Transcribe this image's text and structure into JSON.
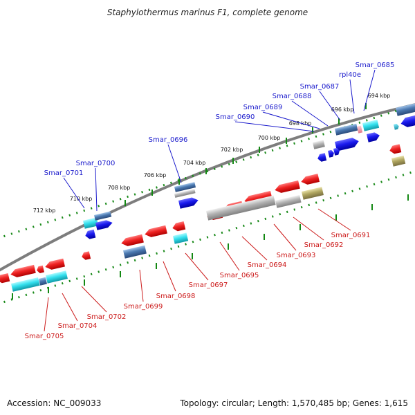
{
  "title": "Staphylothermus marinus F1, complete genome",
  "footer": {
    "accession": "Accession: NC_009033",
    "summary": "Topology: circular; Length: 1,570,485 bp; Genes: 1,615"
  },
  "colors": {
    "backbone": "#7d7d7d",
    "tick_dots": "#1a8a1a",
    "forward_label": "#1a1acc",
    "reverse_label": "#cc1a1a",
    "red_gene": "#ee2222",
    "blue_gene": "#1a1aee",
    "cyan_gene": "#33e0ee",
    "steel_gene": "#4a78b0",
    "gray_gene": "#b4b4b4",
    "olive_gene": "#b0a660",
    "pink_gene": "#f09aa8",
    "teal_gene": "#30a8c0"
  },
  "kbp_ticks": [
    "694 kbp",
    "696 kbp",
    "698 kbp",
    "700 kbp",
    "702 kbp",
    "704 kbp",
    "706 kbp",
    "708 kbp",
    "710 kbp",
    "712 kbp"
  ],
  "forward_genes": [
    "Smar_0685",
    "rpl40e",
    "Smar_0687",
    "Smar_0688",
    "Smar_0689",
    "Smar_0690",
    "Smar_0696",
    "Smar_0700",
    "Smar_0701"
  ],
  "reverse_genes": [
    "Smar_0691",
    "Smar_0692",
    "Smar_0693",
    "Smar_0694",
    "Smar_0695",
    "Smar_0697",
    "Smar_0698",
    "Smar_0699",
    "Smar_0702",
    "Smar_0704",
    "Smar_0705"
  ]
}
